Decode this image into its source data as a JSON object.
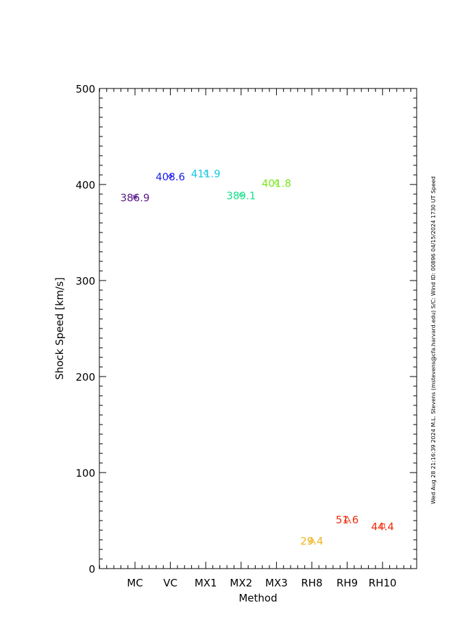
{
  "chart_data": {
    "type": "scatter",
    "title": "",
    "xlabel": "Method",
    "ylabel": "Shock Speed [km/s]",
    "ylim": [
      0,
      500
    ],
    "yticks": [
      0,
      100,
      200,
      300,
      400,
      500
    ],
    "y_minor_step": 10,
    "grid": false,
    "categories": [
      "MC",
      "VC",
      "MX1",
      "MX2",
      "MX3",
      "RH8",
      "RH9",
      "RH10"
    ],
    "points": [
      {
        "category": "MC",
        "value": 386.9,
        "label": "386.9",
        "marker": "star",
        "color": "#5a1a8a"
      },
      {
        "category": "VC",
        "value": 408.6,
        "label": "408.6",
        "marker": "diamond",
        "color": "#1f1ff0"
      },
      {
        "category": "MX1",
        "value": 411.9,
        "label": "411.9",
        "marker": "diamond",
        "color": "#18c8e0"
      },
      {
        "category": "MX2",
        "value": 389.1,
        "label": "389.1",
        "marker": "diamond",
        "color": "#19e08a"
      },
      {
        "category": "MX3",
        "value": 401.8,
        "label": "401.8",
        "marker": "diamond",
        "color": "#7ae81e"
      },
      {
        "category": "RH8",
        "value": 29.4,
        "label": "29.4",
        "marker": "triangle",
        "color": "#f0b41e"
      },
      {
        "category": "RH9",
        "value": 51.6,
        "label": "51.6",
        "marker": "triangle",
        "color": "#f02a0a"
      },
      {
        "category": "RH10",
        "value": 44.4,
        "label": "44.4",
        "marker": "square",
        "color": "#f02a0a"
      }
    ]
  },
  "footer_note": "Wed Aug 28 21:16:39 2024   M.L. Stevens (mstevens@cfa.harvard.edu)   S/C: Wind  ID: 00896 04/15/2024  1730 UT Speed"
}
